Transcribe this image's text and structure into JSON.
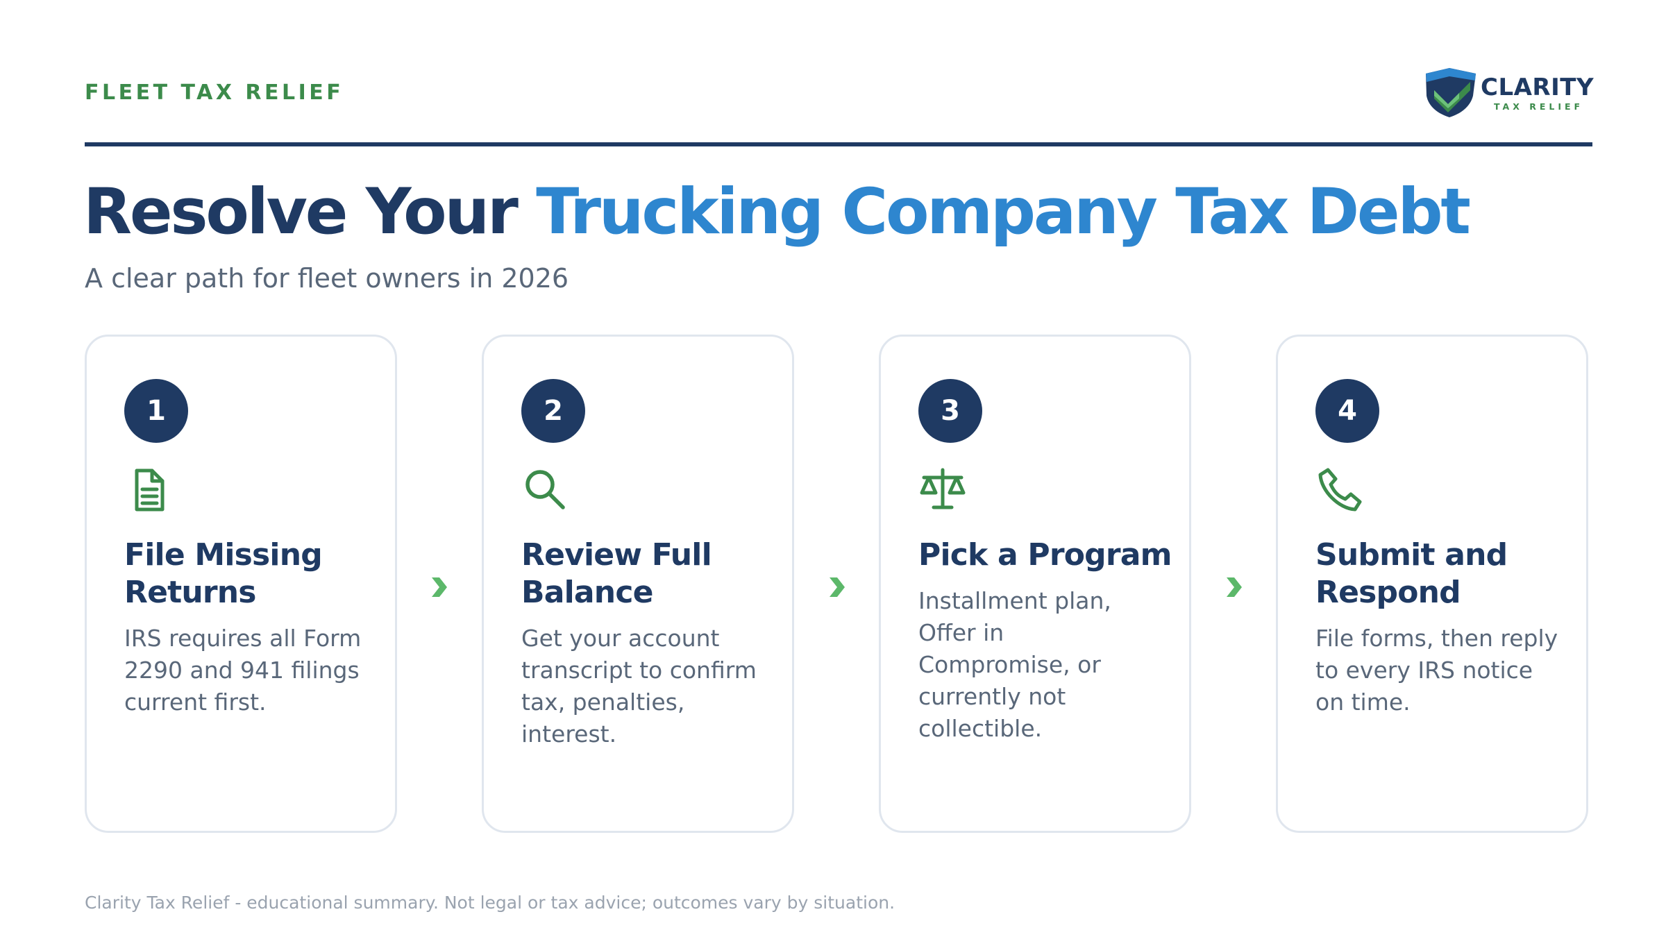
{
  "header": {
    "eyebrow": "FLEET TAX RELIEF",
    "logo": {
      "name": "CLARITY",
      "tagline": "TAX RELIEF",
      "icon": "shield-check-icon"
    }
  },
  "hero": {
    "title_part1": "Resolve Your",
    "title_part2": "Trucking Company Tax Debt",
    "subtitle": "A clear path for fleet owners in 2026"
  },
  "steps": [
    {
      "number": "1",
      "icon": "document-icon",
      "title": "File Missing Returns",
      "text": "IRS requires all Form 2290 and 941 filings current first."
    },
    {
      "number": "2",
      "icon": "search-icon",
      "title": "Review Full Balance",
      "text": "Get your account transcript to confirm tax, penalties, interest."
    },
    {
      "number": "3",
      "icon": "scales-icon",
      "title": "Pick a Program",
      "text": "Installment plan, Offer in Compromise, or currently not collectible."
    },
    {
      "number": "4",
      "icon": "phone-icon",
      "title": "Submit and Respond",
      "text": "File forms, then reply to every IRS notice on time."
    }
  ],
  "footer": {
    "disclaimer": "Clarity Tax Relief - educational summary. Not legal or tax advice; outcomes vary by situation."
  },
  "colors": {
    "navy": "#1f3a63",
    "blue": "#2e86cf",
    "green": "#3c8b4b",
    "arrow_green": "#5cb86a",
    "gray_text": "#596779"
  }
}
